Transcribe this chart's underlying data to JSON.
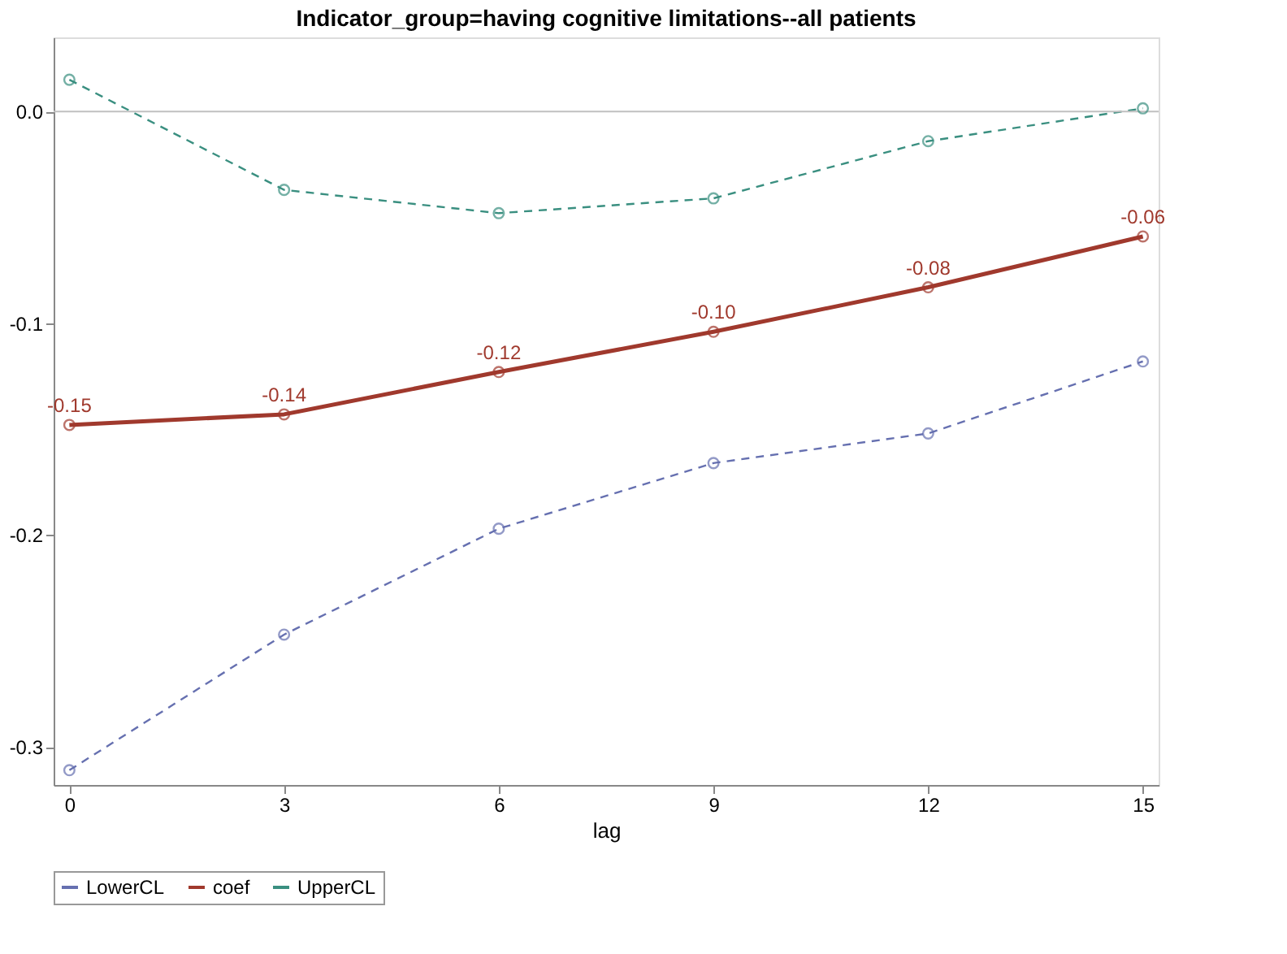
{
  "chart_data": {
    "type": "line",
    "title": "Indicator_group=having cognitive limitations--all patients",
    "xlabel": "lag",
    "x": [
      0,
      3,
      6,
      9,
      12,
      15
    ],
    "series": [
      {
        "name": "LowerCL",
        "color": "#6670b0",
        "line_style": "dashed",
        "values": [
          -0.311,
          -0.247,
          -0.197,
          -0.166,
          -0.152,
          -0.118
        ]
      },
      {
        "name": "coef",
        "color": "#a0392d",
        "line_style": "solid",
        "values": [
          -0.148,
          -0.143,
          -0.123,
          -0.104,
          -0.083,
          -0.059
        ],
        "value_labels": [
          "-0.15",
          "-0.14",
          "-0.12",
          "-0.10",
          "-0.08",
          "-0.06"
        ]
      },
      {
        "name": "UpperCL",
        "color": "#3a8f80",
        "line_style": "dashed",
        "values": [
          0.015,
          -0.037,
          -0.048,
          -0.041,
          -0.014,
          0.0015
        ]
      }
    ],
    "xlim": [
      -0.22,
      15.22
    ],
    "xticks": [
      0,
      3,
      6,
      9,
      12,
      15
    ],
    "ylim": [
      -0.318,
      0.035
    ],
    "yticks": [
      {
        "value": -0.3,
        "label": "-0.3"
      },
      {
        "value": -0.2,
        "label": "-0.2"
      },
      {
        "value": -0.1,
        "label": "-0.1"
      },
      {
        "value": 0,
        "label": "0.0"
      }
    ],
    "ref_lines": [
      {
        "axis": "y",
        "value": 0,
        "color": "#c0c0c0"
      }
    ],
    "grid": false,
    "legend": "bottom",
    "marker": "circle"
  }
}
